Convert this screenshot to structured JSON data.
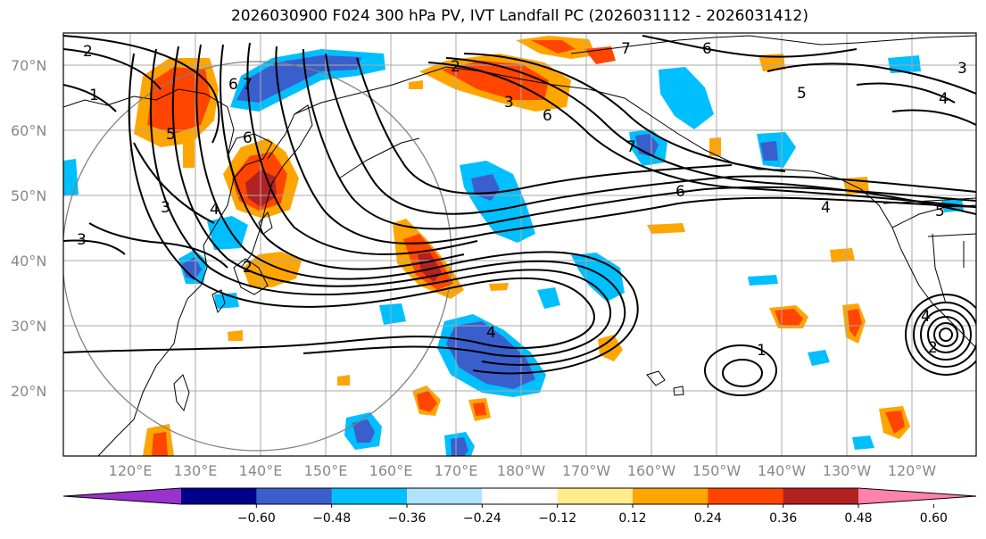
{
  "title": "2026030900 F024 300 hPa PV, IVT Landfall PC (2026031112 - 2026031412)",
  "map": {
    "lat_labels": [
      "70°N",
      "60°N",
      "50°N",
      "40°N",
      "30°N",
      "20°N"
    ],
    "lon_labels": [
      "120°E",
      "130°E",
      "140°E",
      "150°E",
      "160°E",
      "170°E",
      "180°W",
      "170°W",
      "160°W",
      "150°W",
      "140°W",
      "130°W",
      "120°W"
    ]
  },
  "colorbar": {
    "ticks": [
      "−0.60",
      "−0.48",
      "−0.36",
      "−0.24",
      "−0.12",
      "0.12",
      "0.24",
      "0.36",
      "0.48",
      "0.60"
    ],
    "colors": [
      "#9a32cd",
      "#00008b",
      "#3a5fcd",
      "#00bfff",
      "#b0e2ff",
      "#ffffff",
      "#ffec8b",
      "#ffa500",
      "#ff4500",
      "#b22222",
      "#ff82ab"
    ]
  },
  "contour_labels": [
    "2",
    "1",
    "5",
    "6",
    "7",
    "6",
    "3",
    "3",
    "2",
    "4",
    "6",
    "7",
    "5",
    "4",
    "3",
    "6",
    "7",
    "6",
    "4",
    "5",
    "4",
    "1",
    "2",
    "2",
    "3",
    "4"
  ]
}
